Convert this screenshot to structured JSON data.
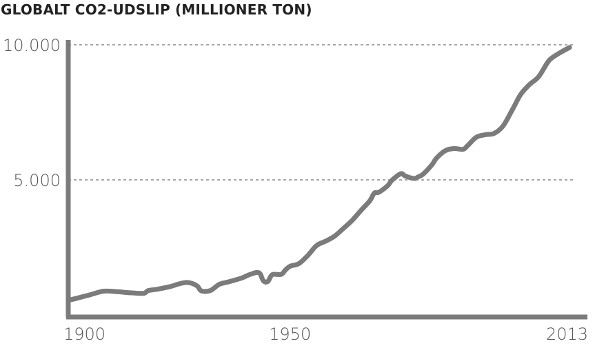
{
  "chart_data": {
    "type": "line",
    "title": "GLOBALT CO2-UDSLIP (MILLIONER TON)",
    "xlabel": "",
    "ylabel": "",
    "xlim": [
      1900,
      2013
    ],
    "ylim": [
      0,
      10000
    ],
    "x_ticks": [
      {
        "value": 1900,
        "label": "1900"
      },
      {
        "value": 1950,
        "label": "1950"
      },
      {
        "value": 2013,
        "label": "2013"
      }
    ],
    "y_ticks": [
      {
        "value": 5000,
        "label": "5.000"
      },
      {
        "value": 10000,
        "label": "10.000"
      }
    ],
    "grid": "dashed horizontal lines at 5.000 and 10.000",
    "colors": {
      "line": "#7b7b7b",
      "axis": "#7b7b7b",
      "grid": "#888888",
      "title": "#222222",
      "tick": "#555555"
    },
    "series": [
      {
        "x": [
          1900,
          1902,
          1905,
          1908,
          1911,
          1914,
          1917,
          1918,
          1920,
          1923,
          1925,
          1927,
          1929,
          1930,
          1932,
          1934,
          1936,
          1939,
          1941,
          1943,
          1944,
          1945,
          1946,
          1948,
          1949,
          1950,
          1952,
          1954,
          1956,
          1958,
          1960,
          1962,
          1964,
          1966,
          1968,
          1969,
          1970,
          1972,
          1973,
          1975,
          1976,
          1978,
          1979,
          1980,
          1982,
          1983,
          1985,
          1987,
          1989,
          1990,
          1992,
          1994,
          1996,
          1998,
          2000,
          2002,
          2004,
          2006,
          2008,
          2009,
          2011,
          2013
        ],
        "y": [
          540,
          620,
          750,
          880,
          860,
          820,
          800,
          900,
          950,
          1050,
          1150,
          1200,
          1080,
          890,
          900,
          1130,
          1220,
          1360,
          1500,
          1560,
          1260,
          1240,
          1490,
          1500,
          1670,
          1800,
          1900,
          2200,
          2570,
          2730,
          2910,
          3200,
          3500,
          3870,
          4230,
          4510,
          4540,
          4780,
          4990,
          5230,
          5140,
          5050,
          5120,
          5210,
          5560,
          5800,
          6080,
          6160,
          6130,
          6260,
          6580,
          6670,
          6720,
          6990,
          7560,
          8160,
          8530,
          8810,
          9330,
          9510,
          9720,
          9900
        ]
      }
    ]
  }
}
